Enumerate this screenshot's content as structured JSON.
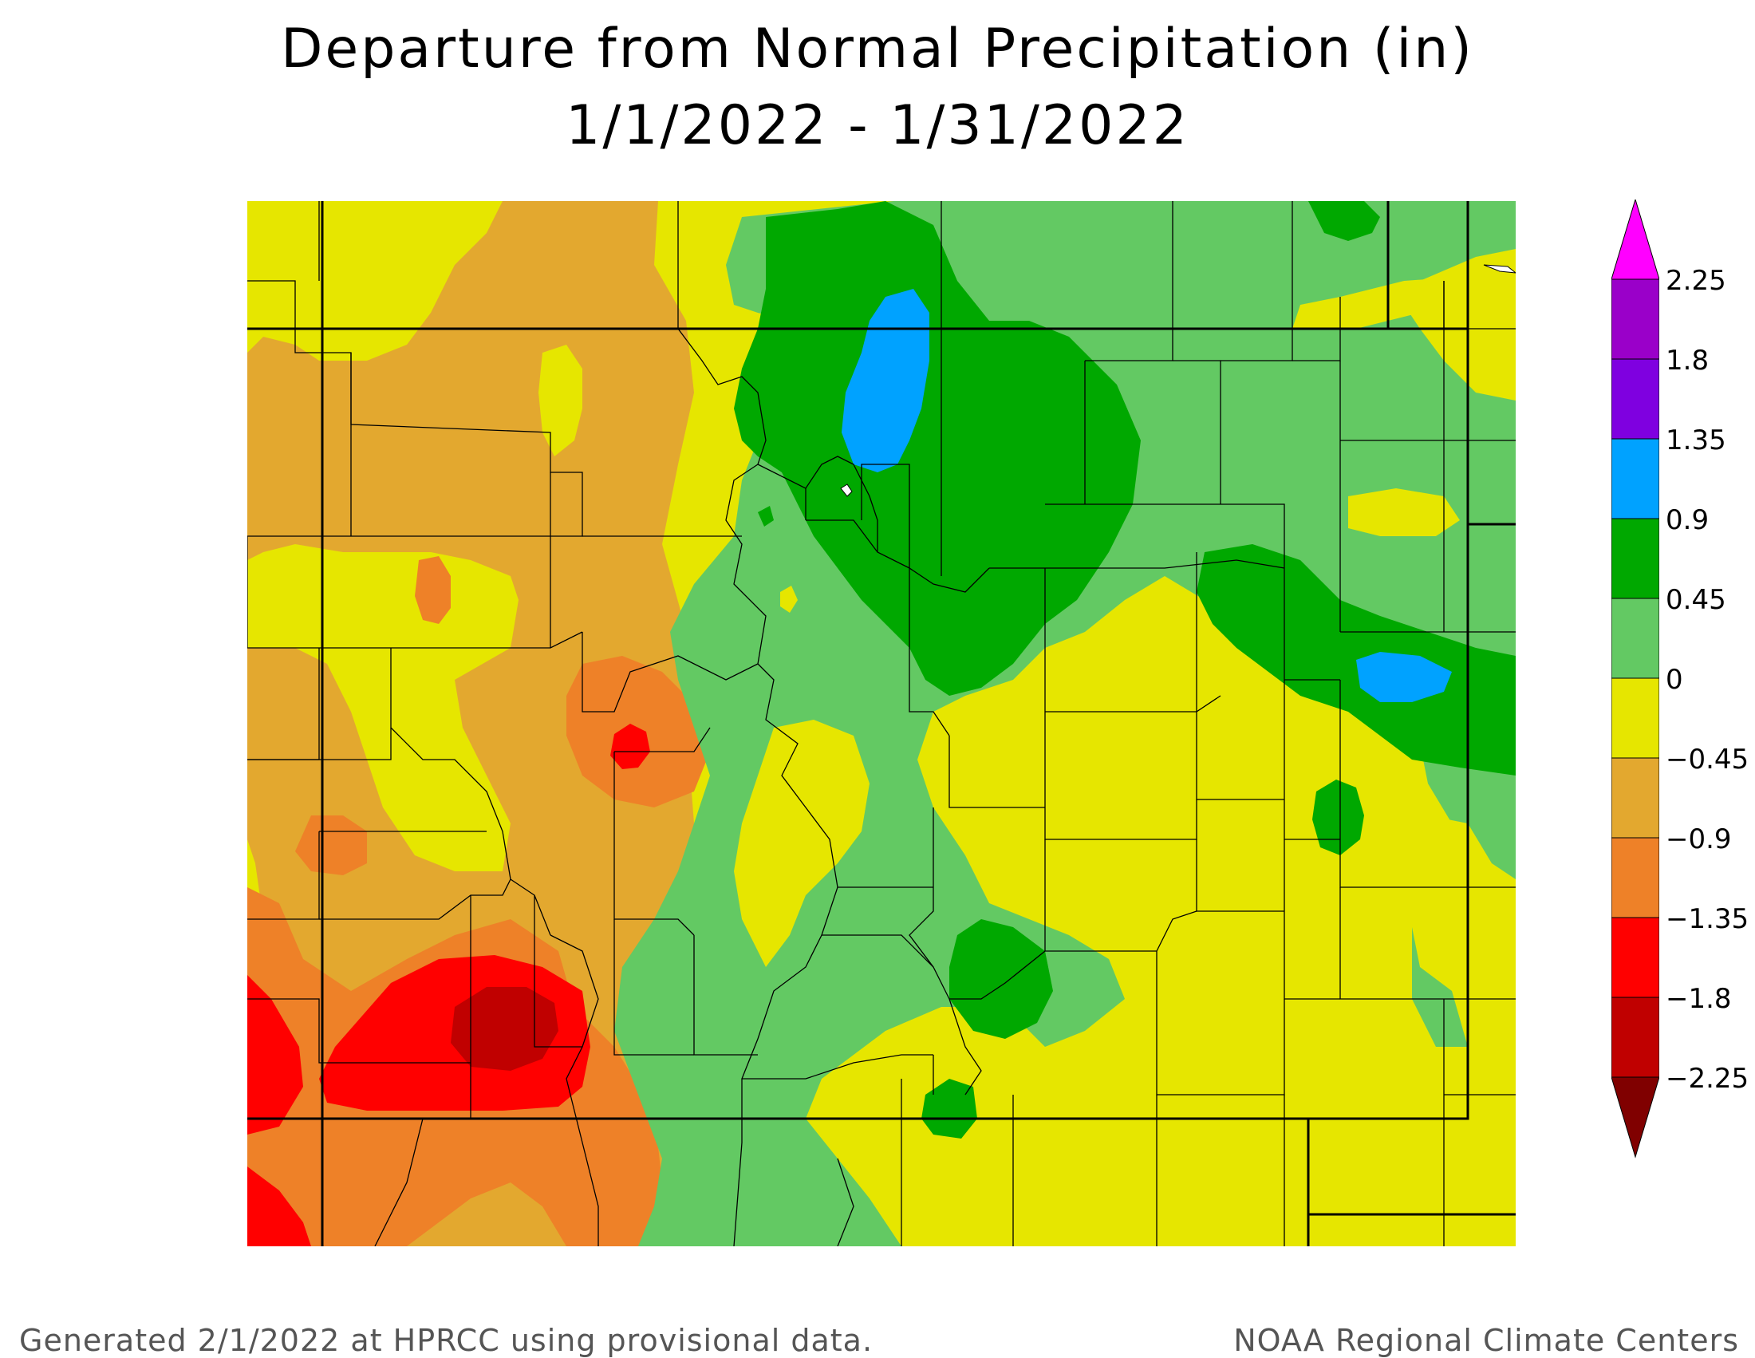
{
  "title": {
    "line1": "Departure from Normal Precipitation (in)",
    "line2": "1/1/2022 - 1/31/2022"
  },
  "legend": {
    "labels": [
      "2.25",
      "1.8",
      "1.35",
      "0.9",
      "0.45",
      "0",
      "−0.45",
      "−0.9",
      "−1.35",
      "−1.8",
      "−2.25"
    ],
    "colors": {
      "above_2_25": "#ff00ff",
      "1_8_to_2_25": "#9a00c9",
      "1_35_to_1_8": "#7f00e0",
      "0_9_to_1_35": "#00a2ff",
      "0_45_to_0_9": "#00a800",
      "0_to_0_45": "#63c963",
      "neg_0_45_to_0": "#e6e600",
      "neg_0_9_to_neg_0_45": "#e3a82f",
      "neg_1_35_to_neg_0_9": "#ee8128",
      "neg_1_8_to_neg_1_35": "#ff0000",
      "neg_2_25_to_neg_1_8": "#c00000",
      "below_neg_2_25": "#800000"
    }
  },
  "footer": {
    "left": "Generated 2/1/2022 at HPRCC using provisional data.",
    "right": "NOAA Regional Climate Centers"
  }
}
